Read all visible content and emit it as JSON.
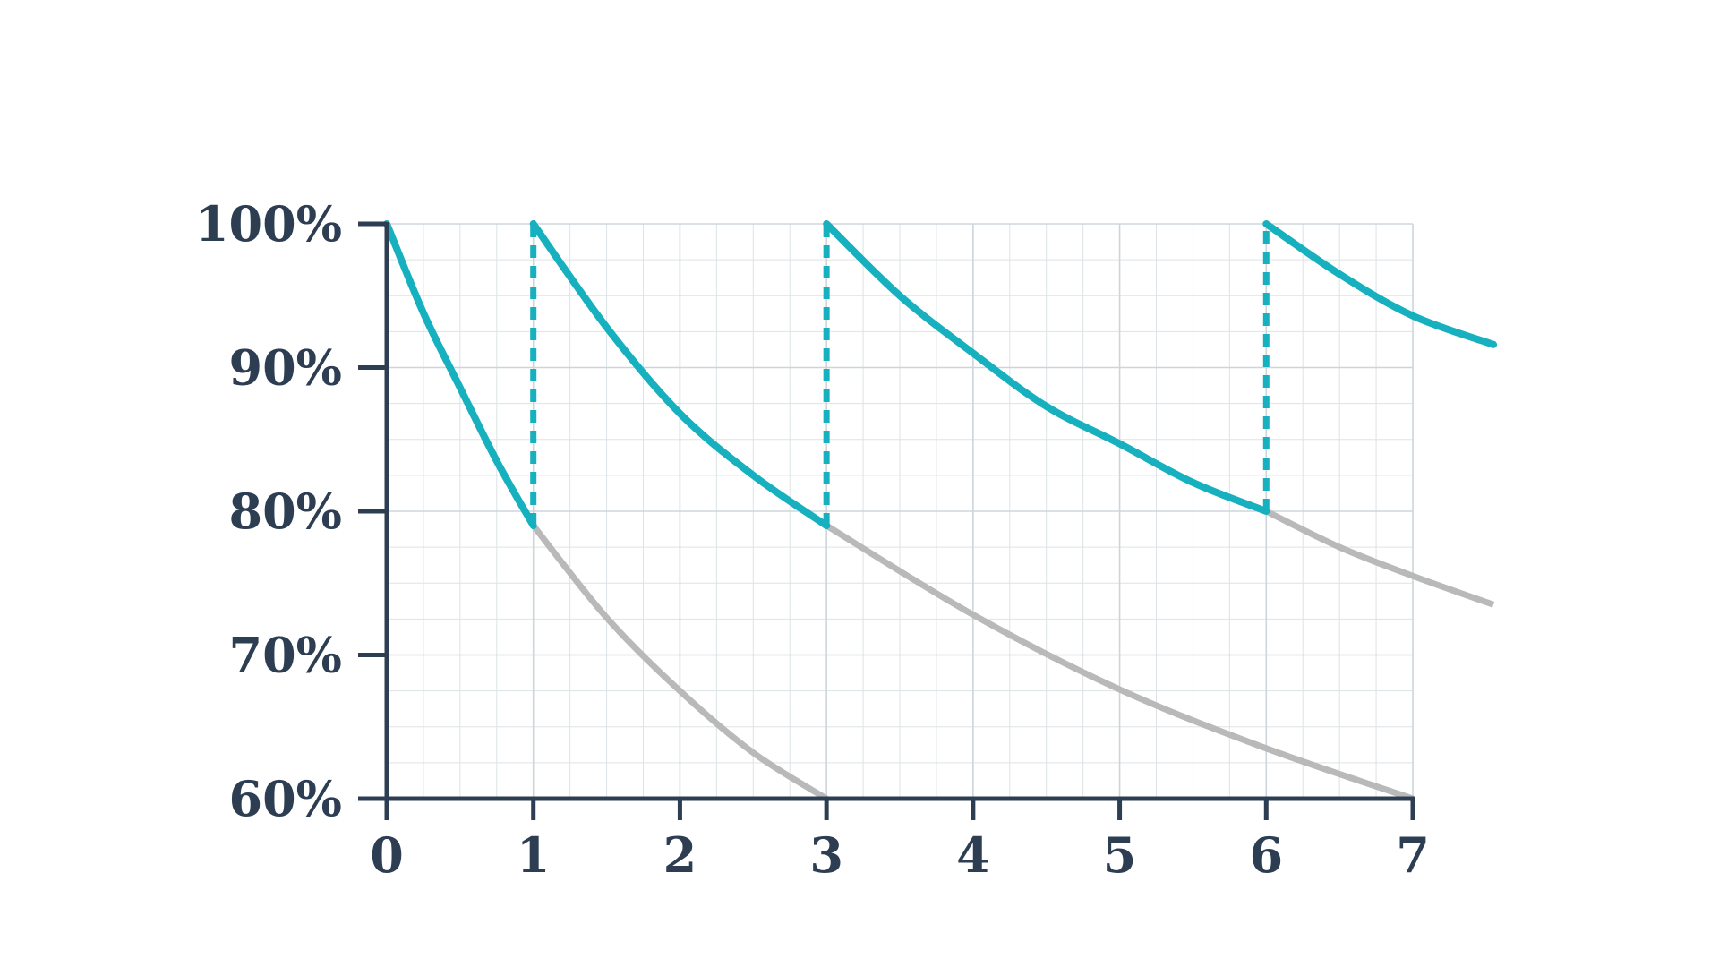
{
  "chart_data": {
    "type": "line",
    "title": "",
    "xlabel": "",
    "ylabel": "",
    "xlim": [
      0,
      7
    ],
    "ylim": [
      60,
      100
    ],
    "grid": true,
    "x_ticks": [
      {
        "value": 0,
        "label": "0"
      },
      {
        "value": 1,
        "label": "1"
      },
      {
        "value": 2,
        "label": "2"
      },
      {
        "value": 3,
        "label": "3"
      },
      {
        "value": 4,
        "label": "4"
      },
      {
        "value": 5,
        "label": "5"
      },
      {
        "value": 6,
        "label": "6"
      },
      {
        "value": 7,
        "label": "7"
      }
    ],
    "y_ticks": [
      {
        "value": 100,
        "label": "100%"
      },
      {
        "value": 90,
        "label": "90%"
      },
      {
        "value": 80,
        "label": "80%"
      },
      {
        "value": 70,
        "label": "70%"
      },
      {
        "value": 60,
        "label": "60%"
      }
    ],
    "colors": {
      "reviewed": "#17b0bf",
      "forgetting": "#b9b9b9",
      "axis": "#2d3e52",
      "grid": "#dde3e6"
    },
    "series": [
      {
        "style": "teal",
        "x": [
          0,
          0.25,
          0.5,
          0.75,
          1
        ],
        "y": [
          100,
          93.8,
          88.6,
          83.5,
          79
        ]
      },
      {
        "style": "teal",
        "x": [
          1,
          1.5,
          2,
          2.5,
          3
        ],
        "y": [
          100,
          92.8,
          86.8,
          82.5,
          79
        ]
      },
      {
        "style": "teal",
        "x": [
          3,
          3.5,
          4,
          4.5,
          5,
          5.5,
          6
        ],
        "y": [
          100,
          95,
          91,
          87.3,
          84.7,
          82,
          80
        ]
      },
      {
        "style": "teal",
        "x": [
          6,
          6.5,
          7,
          7.55
        ],
        "y": [
          100,
          96.5,
          93.6,
          91.6
        ]
      },
      {
        "style": "gray",
        "x": [
          1,
          1.5,
          2,
          2.5,
          3
        ],
        "y": [
          79,
          72.6,
          67.5,
          63.2,
          60
        ]
      },
      {
        "style": "gray",
        "x": [
          3,
          4,
          5,
          6,
          7
        ],
        "y": [
          79,
          72.8,
          67.6,
          63.5,
          60
        ]
      },
      {
        "style": "gray",
        "x": [
          6,
          6.5,
          7,
          7.55
        ],
        "y": [
          80,
          77.5,
          75.5,
          73.5
        ]
      },
      {
        "style": "teal-dashed",
        "x": [
          1,
          1
        ],
        "y": [
          79,
          100
        ]
      },
      {
        "style": "teal-dashed",
        "x": [
          3,
          3
        ],
        "y": [
          79,
          100
        ]
      },
      {
        "style": "teal-dashed",
        "x": [
          6,
          6
        ],
        "y": [
          80,
          100
        ]
      }
    ]
  }
}
